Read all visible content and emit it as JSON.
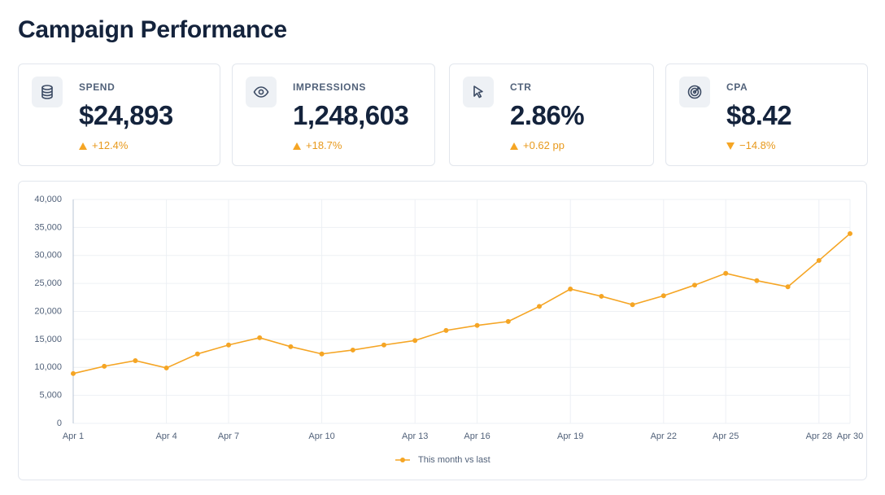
{
  "header": {
    "title": "Campaign Performance"
  },
  "kpis": [
    {
      "label": "SPEND",
      "value": "$24,893",
      "delta": "+12.4%",
      "trend": "up"
    },
    {
      "label": "IMPRESSIONS",
      "value": "1,248,603",
      "delta": "+18.7%",
      "trend": "up"
    },
    {
      "label": "CTR",
      "value": "2.86%",
      "delta": "+0.62 pp",
      "trend": "up"
    },
    {
      "label": "CPA",
      "value": "$8.42",
      "delta": "−14.8%",
      "trend": "down"
    }
  ],
  "chart_data": {
    "type": "line",
    "categories": [
      "Apr 1",
      null,
      null,
      "Apr 4",
      null,
      "Apr 7",
      null,
      null,
      "Apr 10",
      null,
      null,
      "Apr 13",
      null,
      "Apr 16",
      null,
      null,
      "Apr 19",
      null,
      null,
      "Apr 22",
      null,
      "Apr 25",
      null,
      null,
      "Apr 28",
      "Apr 30"
    ],
    "series": [
      {
        "name": "This month vs last",
        "color": "#f5a524",
        "values": [
          8900,
          10200,
          11200,
          9900,
          12400,
          14000,
          15300,
          13700,
          12400,
          13100,
          14000,
          14800,
          16600,
          17500,
          18200,
          20900,
          24000,
          22700,
          21200,
          22800,
          24700,
          26800,
          25500,
          24400,
          29100,
          33900
        ]
      }
    ],
    "ylim": [
      0,
      40000
    ],
    "yticks": [
      0,
      {
        "value": 5000,
        "label": "5,000"
      },
      {
        "value": 10000,
        "label": "10,000"
      },
      {
        "value": 15000,
        "label": "15,000"
      },
      {
        "value": 20000,
        "label": "20,000"
      },
      {
        "value": 25000,
        "label": "25,000"
      },
      {
        "value": 30000,
        "label": "30,000"
      },
      {
        "value": 35000,
        "label": "35,000"
      },
      {
        "value": 40000,
        "label": "40,000"
      }
    ],
    "grid": true,
    "legend": "bottom"
  }
}
